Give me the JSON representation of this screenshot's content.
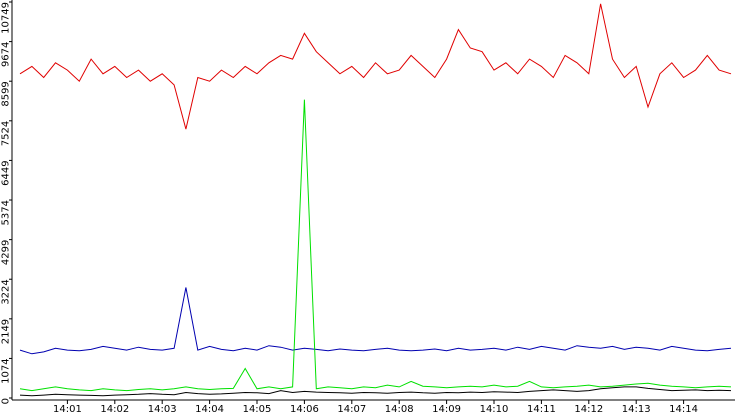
{
  "chart_data": {
    "type": "line",
    "categories": [
      null,
      null,
      null,
      null,
      "14:01",
      null,
      null,
      null,
      "14:02",
      null,
      null,
      null,
      "14:03",
      null,
      null,
      null,
      "14:04",
      null,
      null,
      null,
      "14:05",
      null,
      null,
      null,
      "14:06",
      null,
      null,
      null,
      "14:07",
      null,
      null,
      null,
      "14:08",
      null,
      null,
      null,
      "14:09",
      null,
      null,
      null,
      "14:10",
      null,
      null,
      null,
      "14:11",
      null,
      null,
      null,
      "14:12",
      null,
      null,
      null,
      "14:13",
      null,
      null,
      null,
      "14:14",
      null,
      null,
      null,
      null
    ],
    "ylim": [
      0,
      10749
    ],
    "yticks": [
      0,
      1074,
      2149,
      3224,
      4299,
      5374,
      6449,
      7524,
      8599,
      9674,
      10749
    ],
    "series": [
      {
        "color": "#e00000",
        "values": [
          8800,
          9000,
          8700,
          9100,
          8900,
          8600,
          9200,
          8800,
          9000,
          8700,
          8900,
          8600,
          8800,
          8500,
          7300,
          8700,
          8600,
          8900,
          8700,
          9000,
          8800,
          9100,
          9300,
          9200,
          9900,
          9400,
          9100,
          8800,
          9000,
          8700,
          9100,
          8800,
          8900,
          9300,
          9000,
          8700,
          9200,
          10000,
          9500,
          9400,
          8900,
          9100,
          8800,
          9200,
          9000,
          8700,
          9300,
          9100,
          8800,
          10700,
          9200,
          8700,
          9000,
          7900,
          8800,
          9100,
          8700,
          8900,
          9300,
          8900,
          8800
        ]
      },
      {
        "color": "#0000b0",
        "values": [
          1300,
          1200,
          1250,
          1350,
          1300,
          1280,
          1320,
          1400,
          1350,
          1300,
          1380,
          1320,
          1300,
          1350,
          3000,
          1300,
          1400,
          1320,
          1280,
          1350,
          1300,
          1420,
          1380,
          1300,
          1350,
          1320,
          1280,
          1330,
          1300,
          1280,
          1320,
          1350,
          1300,
          1280,
          1300,
          1330,
          1280,
          1350,
          1300,
          1320,
          1350,
          1300,
          1380,
          1320,
          1400,
          1350,
          1300,
          1420,
          1380,
          1350,
          1400,
          1320,
          1380,
          1350,
          1300,
          1400,
          1350,
          1300,
          1280,
          1320,
          1350
        ]
      },
      {
        "color": "#00e000",
        "values": [
          250,
          200,
          250,
          300,
          250,
          220,
          200,
          250,
          220,
          200,
          230,
          250,
          220,
          250,
          300,
          250,
          230,
          250,
          260,
          800,
          250,
          300,
          250,
          300,
          8100,
          250,
          300,
          280,
          250,
          300,
          280,
          350,
          300,
          450,
          320,
          300,
          280,
          300,
          320,
          300,
          350,
          300,
          320,
          450,
          300,
          280,
          300,
          320,
          350,
          300,
          320,
          350,
          380,
          400,
          350,
          320,
          300,
          280,
          300,
          320,
          300
        ]
      },
      {
        "color": "#000000",
        "values": [
          80,
          60,
          80,
          100,
          90,
          80,
          70,
          60,
          80,
          90,
          100,
          120,
          100,
          90,
          150,
          120,
          100,
          110,
          130,
          150,
          140,
          120,
          200,
          150,
          180,
          160,
          150,
          140,
          130,
          150,
          140,
          130,
          150,
          160,
          140,
          130,
          150,
          140,
          160,
          150,
          170,
          160,
          150,
          180,
          200,
          220,
          200,
          180,
          200,
          250,
          280,
          300,
          300,
          260,
          230,
          200,
          210,
          220,
          200,
          210,
          200
        ]
      }
    ]
  }
}
